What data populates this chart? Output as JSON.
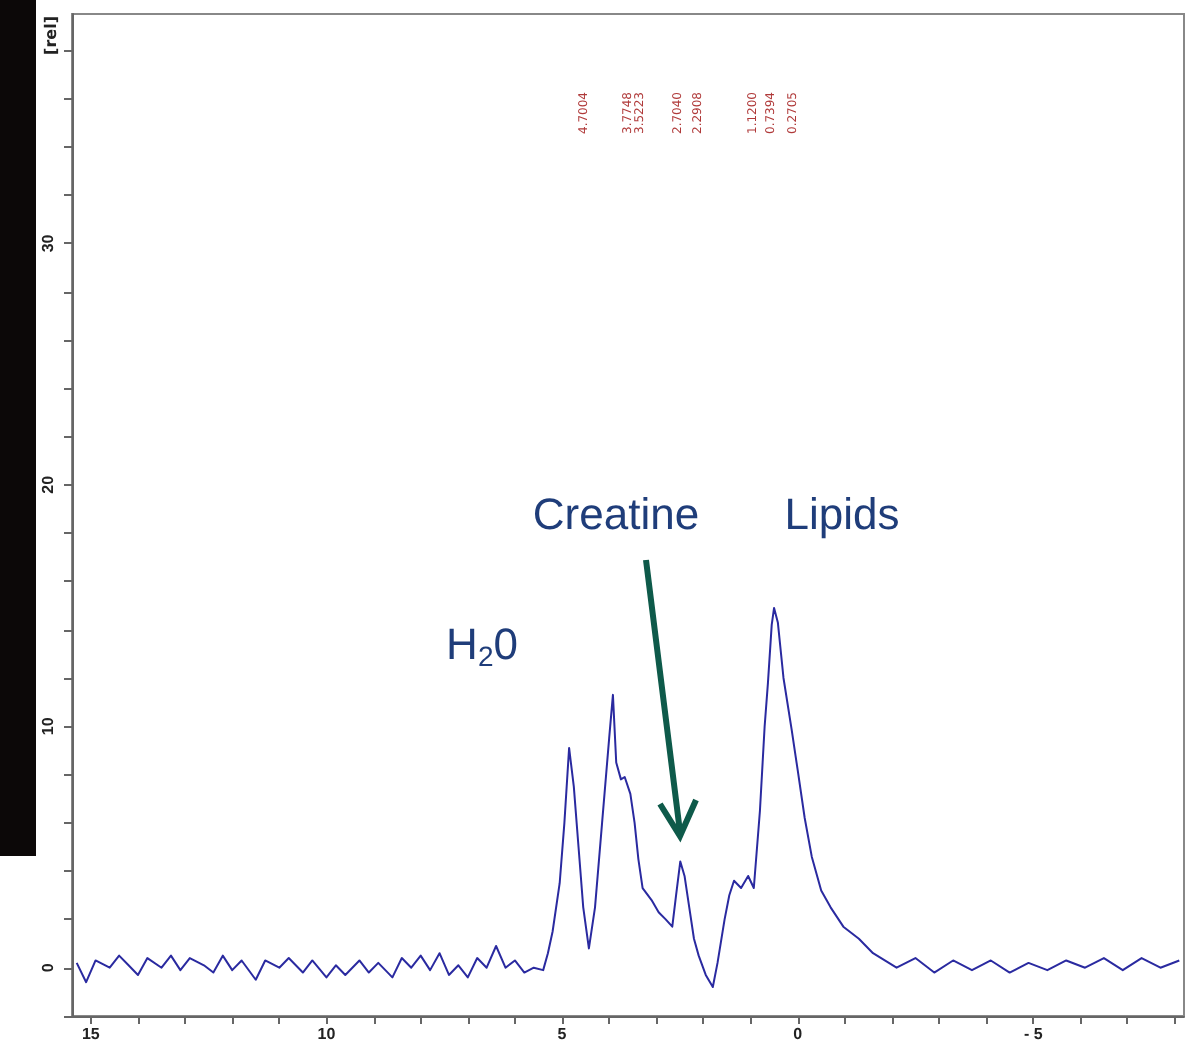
{
  "chart_data": {
    "type": "line",
    "ylabel": "[rel]",
    "xlim": [
      15.4,
      -8.2
    ],
    "ylim": [
      -2,
      39.5
    ],
    "grid": false,
    "marker": "none",
    "line_style": "solid",
    "xticks": [
      15,
      {
        "value": 14,
        "label": null
      },
      {
        "value": 13,
        "label": null
      },
      {
        "value": 12,
        "label": null
      },
      {
        "value": 11,
        "label": null
      },
      10,
      {
        "value": 9,
        "label": null
      },
      {
        "value": 8,
        "label": null
      },
      {
        "value": 7,
        "label": null
      },
      {
        "value": 6,
        "label": null
      },
      5,
      {
        "value": 4,
        "label": null
      },
      {
        "value": 3,
        "label": null
      },
      {
        "value": 2,
        "label": null
      },
      {
        "value": 1,
        "label": null
      },
      0,
      {
        "value": -1,
        "label": null
      },
      {
        "value": -2,
        "label": null
      },
      {
        "value": -3,
        "label": null
      },
      {
        "value": -4,
        "label": null
      },
      {
        "value": -5,
        "label": "- 5"
      },
      {
        "value": -6,
        "label": null
      },
      {
        "value": -7,
        "label": null
      },
      {
        "value": -8,
        "label": null
      }
    ],
    "yticks": [
      {
        "value": -2,
        "label": null
      },
      0,
      {
        "value": 2,
        "label": null
      },
      {
        "value": 4,
        "label": null
      },
      {
        "value": 6,
        "label": null
      },
      {
        "value": 8,
        "label": null
      },
      10,
      {
        "value": 12,
        "label": null
      },
      {
        "value": 14,
        "label": null
      },
      {
        "value": 16,
        "label": null
      },
      {
        "value": 18,
        "label": null
      },
      20,
      {
        "value": 22,
        "label": null
      },
      {
        "value": 24,
        "label": null
      },
      {
        "value": 26,
        "label": null
      },
      {
        "value": 28,
        "label": null
      },
      30,
      {
        "value": 32,
        "label": null
      },
      {
        "value": 34,
        "label": null
      },
      {
        "value": 36,
        "label": null
      },
      {
        "value": 38,
        "label": null
      }
    ],
    "series": [
      {
        "color": "#2a2aa0",
        "x": [
          15.3,
          15.1,
          14.9,
          14.6,
          14.4,
          14.2,
          14.0,
          13.8,
          13.5,
          13.3,
          13.1,
          12.9,
          12.6,
          12.4,
          12.2,
          12.0,
          11.8,
          11.5,
          11.3,
          11.0,
          10.8,
          10.5,
          10.3,
          10.0,
          9.8,
          9.6,
          9.3,
          9.1,
          8.9,
          8.6,
          8.4,
          8.2,
          8.0,
          7.8,
          7.6,
          7.4,
          7.2,
          7.0,
          6.8,
          6.6,
          6.4,
          6.2,
          6.0,
          5.8,
          5.6,
          5.4,
          5.3,
          5.2,
          5.05,
          4.95,
          4.85,
          4.75,
          4.65,
          4.55,
          4.43,
          4.3,
          4.15,
          4.0,
          3.92,
          3.85,
          3.75,
          3.67,
          3.55,
          3.46,
          3.38,
          3.29,
          3.1,
          2.95,
          2.8,
          2.66,
          2.58,
          2.49,
          2.4,
          2.3,
          2.2,
          2.1,
          1.95,
          1.8,
          1.7,
          1.55,
          1.45,
          1.35,
          1.2,
          1.05,
          0.93,
          0.8,
          0.7,
          0.63,
          0.55,
          0.5,
          0.42,
          0.3,
          0.13,
          0.0,
          -0.15,
          -0.3,
          -0.5,
          -0.7,
          -0.97,
          -1.3,
          -1.6,
          -2.1,
          -2.5,
          -2.9,
          -3.3,
          -3.7,
          -4.1,
          -4.5,
          -4.9,
          -5.3,
          -5.7,
          -6.1,
          -6.5,
          -6.9,
          -7.3,
          -7.7,
          -8.1
        ],
        "values": [
          0.2,
          -0.6,
          0.3,
          0.0,
          0.5,
          0.1,
          -0.3,
          0.4,
          0.0,
          0.5,
          -0.1,
          0.4,
          0.1,
          -0.2,
          0.5,
          -0.1,
          0.3,
          -0.5,
          0.3,
          0.0,
          0.4,
          -0.2,
          0.3,
          -0.4,
          0.1,
          -0.3,
          0.3,
          -0.2,
          0.2,
          -0.4,
          0.4,
          0.0,
          0.5,
          -0.1,
          0.6,
          -0.3,
          0.1,
          -0.4,
          0.4,
          0.0,
          0.9,
          0.0,
          0.3,
          -0.2,
          0.0,
          -0.1,
          0.6,
          1.5,
          3.5,
          6.0,
          9.1,
          7.5,
          5.0,
          2.5,
          0.8,
          2.5,
          6.0,
          9.5,
          11.3,
          8.5,
          7.8,
          7.9,
          7.2,
          6.0,
          4.5,
          3.3,
          2.8,
          2.3,
          2.0,
          1.7,
          3.0,
          4.4,
          3.8,
          2.5,
          1.2,
          0.5,
          -0.3,
          -0.8,
          0.2,
          2.0,
          3.0,
          3.6,
          3.3,
          3.8,
          3.3,
          6.5,
          10.0,
          11.8,
          14.2,
          14.9,
          14.3,
          12.0,
          9.9,
          8.2,
          6.2,
          4.6,
          3.2,
          2.5,
          1.7,
          1.2,
          0.6,
          0.0,
          0.4,
          -0.2,
          0.3,
          -0.1,
          0.3,
          -0.2,
          0.2,
          -0.1,
          0.3,
          0.0,
          0.4,
          -0.1,
          0.4,
          0.0,
          0.3
        ]
      }
    ],
    "annotations": [
      "4.7004",
      "3.7748",
      "3.5223",
      "2.7040",
      "2.2908",
      "1.1200",
      "0.7394",
      "0.2705",
      "Creatine",
      "Lipids",
      "H$_{2}$0"
    ]
  }
}
